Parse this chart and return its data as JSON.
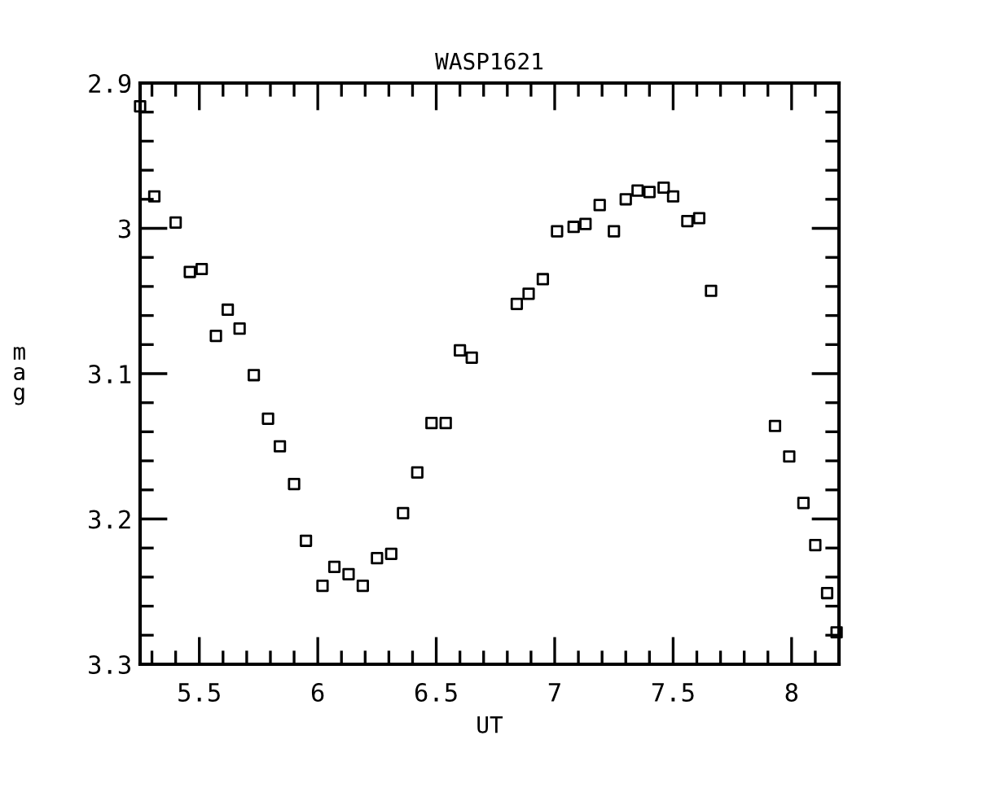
{
  "chart_data": {
    "type": "scatter",
    "title": "WASP1621",
    "xlabel": "UT",
    "ylabel": "mag",
    "marker": "square",
    "grid": false,
    "xlim": [
      5.25,
      8.2
    ],
    "xticks": [
      5.5,
      6,
      6.5,
      7,
      7.5,
      8
    ],
    "ylim": [
      3.3,
      2.9
    ],
    "yticks": [
      2.9,
      3,
      3.1,
      3.2,
      3.3
    ],
    "series": [
      {
        "color": "#000000",
        "x": [
          5.25,
          5.31,
          5.4,
          5.46,
          5.51,
          5.57,
          5.62,
          5.67,
          5.73,
          5.79,
          5.84,
          5.9,
          5.95,
          6.02,
          6.07,
          6.13,
          6.19,
          6.25,
          6.31,
          6.36,
          6.42,
          6.48,
          6.54,
          6.6,
          6.65,
          6.84,
          6.89,
          6.95,
          7.01,
          7.08,
          7.13,
          7.19,
          7.25,
          7.3,
          7.35,
          7.4,
          7.46,
          7.5,
          7.56,
          7.61,
          7.66,
          7.93,
          7.99,
          8.05,
          8.1,
          8.15,
          8.19
        ],
        "values": [
          2.916,
          2.978,
          2.996,
          3.03,
          3.028,
          3.074,
          3.056,
          3.069,
          3.101,
          3.131,
          3.15,
          3.176,
          3.215,
          3.246,
          3.233,
          3.238,
          3.246,
          3.227,
          3.224,
          3.196,
          3.168,
          3.134,
          3.134,
          3.084,
          3.089,
          3.052,
          3.045,
          3.035,
          3.002,
          2.999,
          2.997,
          2.984,
          3.002,
          2.98,
          2.974,
          2.975,
          2.972,
          2.978,
          2.995,
          2.993,
          3.043,
          3.136,
          3.157,
          3.189,
          3.218,
          3.251,
          3.278
        ]
      }
    ]
  }
}
